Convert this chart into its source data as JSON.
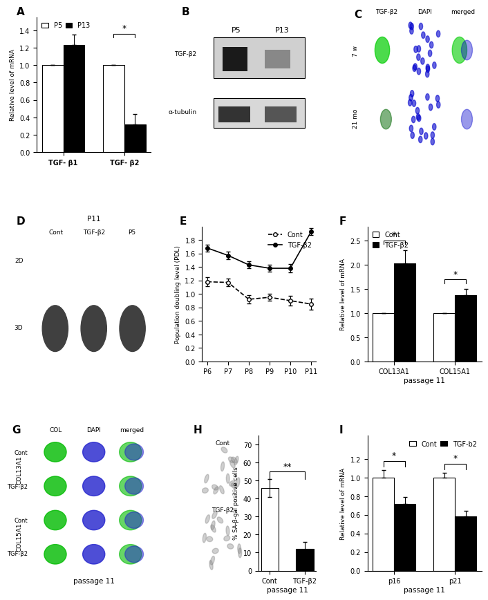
{
  "panel_A": {
    "groups": [
      "TGF-β1",
      "TGF-β2"
    ],
    "p5_values": [
      1.0,
      1.0
    ],
    "p13_values": [
      1.23,
      0.32
    ],
    "p5_errors": [
      0.0,
      0.0
    ],
    "p13_errors": [
      0.12,
      0.12
    ],
    "ylabel": "Relative level of mRNA",
    "ylim": [
      0,
      1.6
    ],
    "yticks": [
      0,
      0.2,
      0.4,
      0.6,
      0.8,
      1.0,
      1.2,
      1.4
    ],
    "legend_labels": [
      "P5",
      "P13"
    ],
    "sig_group": 1,
    "sig_label": "*"
  },
  "panel_E": {
    "x": [
      "P6",
      "P7",
      "P8",
      "P9",
      "P10",
      "P11"
    ],
    "cont_values": [
      1.18,
      1.17,
      0.92,
      0.95,
      0.9,
      0.85
    ],
    "tgf_values": [
      1.68,
      1.57,
      1.43,
      1.38,
      1.38,
      1.92
    ],
    "cont_errors": [
      0.07,
      0.06,
      0.06,
      0.05,
      0.07,
      0.08
    ],
    "tgf_errors": [
      0.05,
      0.06,
      0.05,
      0.05,
      0.06,
      0.05
    ],
    "ylabel": "Population doubling level (PDL)",
    "ylim": [
      0,
      2.0
    ],
    "yticks": [
      0,
      0.2,
      0.4,
      0.6,
      0.8,
      1.0,
      1.2,
      1.4,
      1.6,
      1.8
    ],
    "legend_labels": [
      "Cont",
      "TGF-β2"
    ]
  },
  "panel_F": {
    "groups": [
      "COL13A1",
      "COL15A1"
    ],
    "cont_values": [
      1.0,
      1.0
    ],
    "tgf_values": [
      2.03,
      1.38
    ],
    "cont_errors": [
      0.0,
      0.0
    ],
    "tgf_errors": [
      0.28,
      0.12
    ],
    "ylabel": "Relative level of mRNA",
    "ylim": [
      0,
      2.8
    ],
    "yticks": [
      0,
      0.5,
      1.0,
      1.5,
      2.0,
      2.5
    ],
    "xlabel": "passage 11",
    "legend_labels": [
      "Cont",
      "TGF-β2"
    ],
    "sig_groups": [
      0,
      1
    ],
    "sig_labels": [
      "*",
      "*"
    ]
  },
  "panel_H": {
    "groups": [
      "Cont",
      "TGF-β2"
    ],
    "values": [
      46,
      12
    ],
    "errors": [
      5,
      4
    ],
    "ylabel": "% SA-β-gal positive cells",
    "ylim": [
      0,
      75
    ],
    "yticks": [
      0,
      10,
      20,
      30,
      40,
      50,
      60,
      70
    ],
    "xlabel": "passage 11",
    "sig_label": "**"
  },
  "panel_I": {
    "groups": [
      "p16",
      "p21"
    ],
    "cont_values": [
      1.0,
      1.0
    ],
    "tgf_values": [
      0.72,
      0.58
    ],
    "cont_errors": [
      0.08,
      0.05
    ],
    "tgf_errors": [
      0.07,
      0.06
    ],
    "ylabel": "Relative level of mRNA",
    "ylim": [
      0,
      1.4
    ],
    "yticks": [
      0,
      0.2,
      0.4,
      0.6,
      0.8,
      1.0,
      1.2
    ],
    "xlabel": "passage 11",
    "legend_labels": [
      "Cont",
      "TGF-b2"
    ],
    "sig_groups": [
      0,
      1
    ],
    "sig_labels": [
      "*",
      "*"
    ]
  },
  "colors": {
    "white_bar": "#ffffff",
    "black_bar": "#000000",
    "edge": "#000000"
  }
}
